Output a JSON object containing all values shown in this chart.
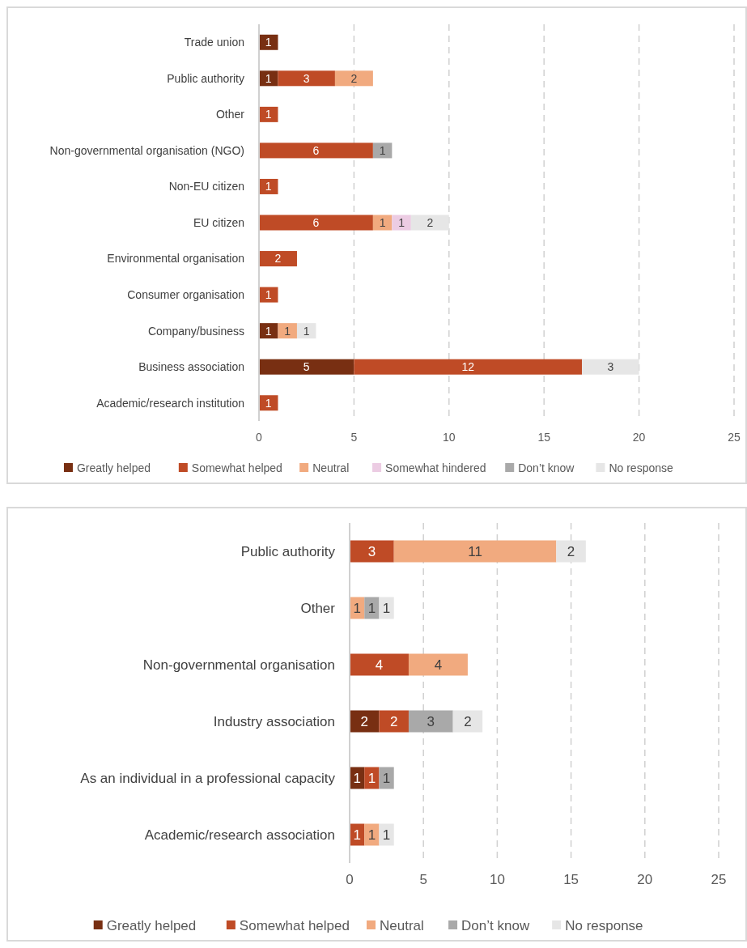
{
  "chart_data": [
    {
      "type": "bar",
      "orientation": "horizontal",
      "stacked": true,
      "categories": [
        "Trade union",
        "Public authority",
        "Other",
        "Non-governmental organisation (NGO)",
        "Non-EU citizen",
        "EU citizen",
        "Environmental organisation",
        "Consumer organisation",
        "Company/business",
        "Business association",
        "Academic/research institution"
      ],
      "series": [
        {
          "name": "Greatly helped",
          "color": "#782f12",
          "values": [
            1,
            1,
            null,
            null,
            null,
            null,
            null,
            null,
            1,
            5,
            null
          ]
        },
        {
          "name": "Somewhat helped",
          "color": "#bf4b26",
          "values": [
            null,
            3,
            1,
            6,
            1,
            6,
            2,
            1,
            null,
            12,
            1
          ]
        },
        {
          "name": "Neutral",
          "color": "#f1aa7f",
          "values": [
            null,
            2,
            null,
            null,
            null,
            1,
            null,
            null,
            1,
            null,
            null
          ]
        },
        {
          "name": "Somewhat hindered",
          "color": "#eccce3",
          "values": [
            null,
            null,
            null,
            null,
            null,
            1,
            null,
            null,
            null,
            null,
            null
          ]
        },
        {
          "name": "Don’t know",
          "color": "#a9a9a9",
          "values": [
            null,
            null,
            null,
            1,
            null,
            null,
            null,
            null,
            null,
            null,
            null
          ]
        },
        {
          "name": "No response",
          "color": "#e6e6e6",
          "values": [
            null,
            null,
            null,
            null,
            null,
            2,
            null,
            null,
            1,
            3,
            null
          ]
        }
      ],
      "xlim": [
        0,
        25
      ],
      "xticks": [
        0,
        5,
        10,
        15,
        20,
        25
      ],
      "grid": "x",
      "legend": "bottom",
      "data_labels": true
    },
    {
      "type": "bar",
      "orientation": "horizontal",
      "stacked": true,
      "categories": [
        "Public authority",
        "Other",
        "Non-governmental organisation",
        "Industry association",
        "As an individual in a professional capacity",
        "Academic/research association"
      ],
      "series": [
        {
          "name": "Greatly helped",
          "color": "#782f12",
          "values": [
            null,
            null,
            null,
            2,
            1,
            null
          ]
        },
        {
          "name": "Somewhat helped",
          "color": "#bf4b26",
          "values": [
            3,
            null,
            4,
            2,
            1,
            1
          ]
        },
        {
          "name": "Neutral",
          "color": "#f1aa7f",
          "values": [
            11,
            1,
            4,
            null,
            null,
            1
          ]
        },
        {
          "name": "Don’t know",
          "color": "#a9a9a9",
          "values": [
            null,
            1,
            null,
            3,
            1,
            null
          ]
        },
        {
          "name": "No response",
          "color": "#e6e6e6",
          "values": [
            2,
            1,
            null,
            2,
            null,
            1
          ]
        }
      ],
      "xlim": [
        0,
        25
      ],
      "xticks": [
        0,
        5,
        10,
        15,
        20,
        25
      ],
      "grid": "x",
      "legend": "bottom",
      "data_labels": true
    }
  ]
}
